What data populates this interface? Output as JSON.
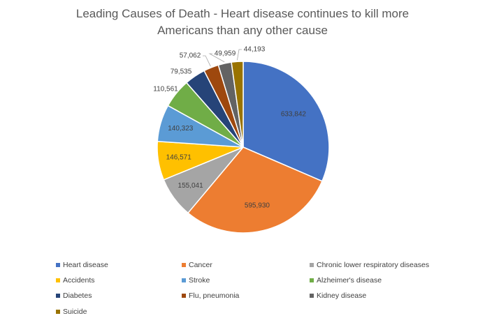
{
  "chart_data": {
    "type": "pie",
    "title_lines": [
      "Leading Causes of Death - Heart disease continues to kill more",
      "Americans than any other cause"
    ],
    "categories": [
      "Heart disease",
      "Cancer",
      "Chronic lower respiratory diseases",
      "Accidents",
      "Stroke",
      "Alzheimer's disease",
      "Diabetes",
      "Flu, pneumonia",
      "Kidney disease",
      "Suicide"
    ],
    "values": [
      633842,
      595930,
      155041,
      146571,
      140323,
      110561,
      79535,
      57062,
      49959,
      44193
    ],
    "value_labels": [
      "633,842",
      "595,930",
      "155,041",
      "146,571",
      "140,323",
      "110,561",
      "79,535",
      "57,062",
      "49,959",
      "44,193"
    ],
    "colors": [
      "#4472c4",
      "#ed7d31",
      "#a5a5a5",
      "#ffc000",
      "#5b9bd5",
      "#70ad47",
      "#264478",
      "#9e480e",
      "#636363",
      "#997300"
    ],
    "legend_position": "bottom",
    "start_angle_deg": 0,
    "direction": "clockwise"
  }
}
